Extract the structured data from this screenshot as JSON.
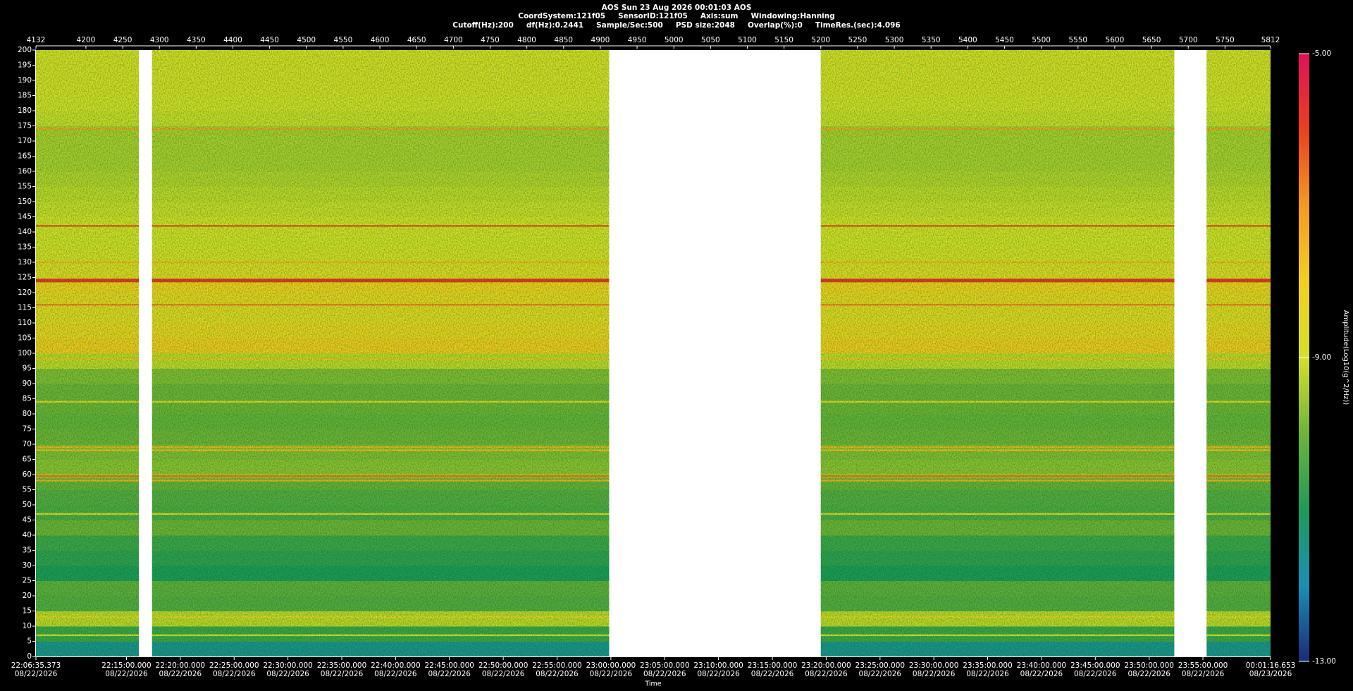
{
  "chart_data": {
    "type": "spectrogram",
    "header": {
      "title": "AOS  Sun 23 Aug 2026 00:01:03  AOS",
      "line2": [
        "CoordSystem:121f05",
        "SensorID:121f05",
        "Axis:sum",
        "Windowing:Hanning"
      ],
      "line3": [
        "Cutoff(Hz):200",
        "df(Hz):0.2441",
        "Sample/Sec:500",
        "PSD size:2048",
        "Overlap(%):0",
        "TimeRes.(sec):4.096"
      ]
    },
    "xlim": [
      4132,
      5812
    ],
    "xticks": [
      4132,
      4200,
      4250,
      4300,
      4350,
      4400,
      4450,
      4500,
      4550,
      4600,
      4650,
      4700,
      4750,
      4800,
      4850,
      4900,
      4950,
      5000,
      5050,
      5100,
      5150,
      5200,
      5250,
      5300,
      5350,
      5400,
      5450,
      5500,
      5550,
      5600,
      5650,
      5700,
      5750,
      5812
    ],
    "time_ticks": [
      {
        "value": 4132,
        "label": "22:06:35.373"
      },
      {
        "value": 4255.2,
        "label": "22:15:00.000"
      },
      {
        "value": 4328.4,
        "label": "22:20:00.000"
      },
      {
        "value": 4401.7,
        "label": "22:25:00.000"
      },
      {
        "value": 4474.9,
        "label": "22:30:00.000"
      },
      {
        "value": 4548.2,
        "label": "22:35:00.000"
      },
      {
        "value": 4621.4,
        "label": "22:40:00.000"
      },
      {
        "value": 4694.6,
        "label": "22:45:00.000"
      },
      {
        "value": 4767.9,
        "label": "22:50:00.000"
      },
      {
        "value": 4841.1,
        "label": "22:55:00.000"
      },
      {
        "value": 4914.4,
        "label": "23:00:00.000"
      },
      {
        "value": 4987.6,
        "label": "23:05:00.000"
      },
      {
        "value": 5060.8,
        "label": "23:10:00.000"
      },
      {
        "value": 5134.1,
        "label": "23:15:00.000"
      },
      {
        "value": 5207.3,
        "label": "23:20:00.000"
      },
      {
        "value": 5280.6,
        "label": "23:25:00.000"
      },
      {
        "value": 5353.8,
        "label": "23:30:00.000"
      },
      {
        "value": 5427.0,
        "label": "23:35:00.000"
      },
      {
        "value": 5500.3,
        "label": "23:40:00.000"
      },
      {
        "value": 5573.5,
        "label": "23:45:00.000"
      },
      {
        "value": 5646.8,
        "label": "23:50:00.000"
      },
      {
        "value": 5720.0,
        "label": "23:55:00.000"
      },
      {
        "value": 5812,
        "label": "00:01:16.653"
      }
    ],
    "time_tick_dates": [
      "08/22/2026",
      "08/22/2026",
      "08/22/2026",
      "08/22/2026",
      "08/22/2026",
      "08/22/2026",
      "08/22/2026",
      "08/22/2026",
      "08/22/2026",
      "08/22/2026",
      "08/22/2026",
      "08/22/2026",
      "08/22/2026",
      "08/22/2026",
      "08/22/2026",
      "08/22/2026",
      "08/22/2026",
      "08/22/2026",
      "08/22/2026",
      "08/22/2026",
      "08/22/2026",
      "08/22/2026",
      "08/23/2026"
    ],
    "xlabel": "Time",
    "ylim": [
      0,
      200
    ],
    "yticks": [
      0,
      5,
      10,
      15,
      20,
      25,
      30,
      35,
      40,
      45,
      50,
      55,
      60,
      65,
      70,
      75,
      80,
      85,
      90,
      95,
      100,
      105,
      110,
      115,
      120,
      125,
      130,
      135,
      140,
      145,
      150,
      155,
      160,
      165,
      170,
      175,
      180,
      185,
      190,
      195,
      200
    ],
    "segments": [
      [
        4132,
        4272
      ],
      [
        4290,
        4912
      ],
      [
        5200,
        5681
      ],
      [
        5725,
        5812
      ]
    ],
    "bands": {
      "edges": [
        0,
        5,
        10,
        15,
        20,
        25,
        30,
        35,
        40,
        45,
        50,
        55,
        60,
        65,
        70,
        75,
        80,
        85,
        90,
        95,
        100,
        105,
        110,
        115,
        120,
        125,
        130,
        135,
        140,
        145,
        150,
        155,
        160,
        165,
        170,
        175,
        180,
        185,
        190,
        195,
        200
      ],
      "values": [
        -11.6,
        -10.6,
        -9.2,
        -10.3,
        -10.2,
        -11.0,
        -10.8,
        -10.6,
        -10.0,
        -10.4,
        -10.3,
        -10.1,
        -9.7,
        -9.8,
        -10.0,
        -10.1,
        -10.0,
        -10.0,
        -9.8,
        -9.2,
        -7.9,
        -8.2,
        -8.5,
        -8.3,
        -8.0,
        -8.6,
        -8.9,
        -9.0,
        -9.0,
        -9.1,
        -9.2,
        -9.3,
        -9.4,
        -9.4,
        -9.4,
        -9.1,
        -9.0,
        -8.9,
        -8.9,
        -8.9
      ]
    },
    "tones": {
      "frequencies": [
        7,
        13,
        47,
        58,
        59,
        60,
        68,
        69,
        84,
        98,
        116,
        124,
        130,
        142,
        174
      ],
      "amplitudes": [
        -9.0,
        -8.5,
        -8.6,
        -7.5,
        -7.0,
        -7.3,
        -7.7,
        -7.5,
        -8.5,
        -7.8,
        -6.8,
        -5.8,
        -7.6,
        -6.3,
        -7.2
      ]
    },
    "colorbar": {
      "clim": [
        -13,
        -5
      ],
      "colors": [
        "#1b2a78",
        "#1a8fb5",
        "#1f9a5a",
        "#6fb33a",
        "#d5e02a",
        "#f2d020",
        "#f49a22",
        "#e8401e",
        "#e0105a"
      ],
      "ticks": [
        {
          "value": -5,
          "label": "-5.00"
        },
        {
          "value": -9,
          "label": "-9.00"
        },
        {
          "value": -13,
          "label": "-13.00"
        }
      ],
      "label": "Amplitude(Log10(g^2/Hz))"
    }
  }
}
